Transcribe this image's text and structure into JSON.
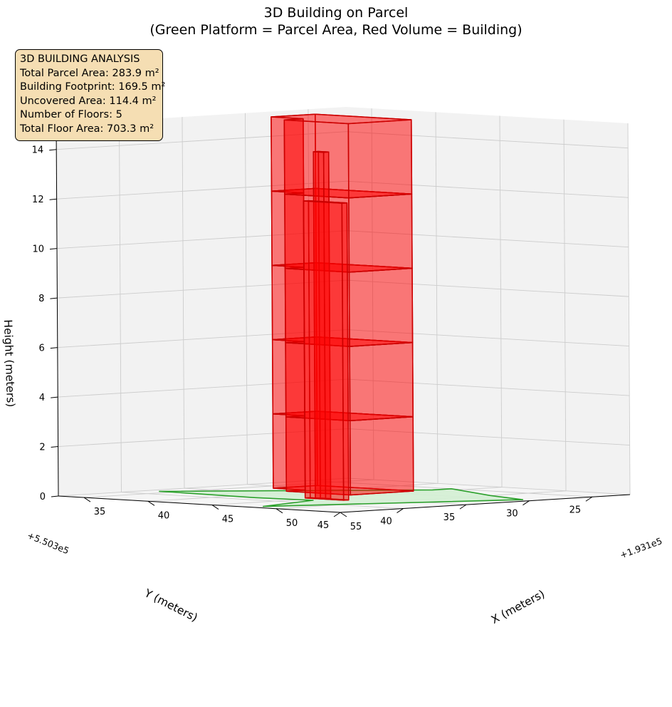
{
  "title": {
    "line1": "3D Building on Parcel",
    "line2": "(Green Platform = Parcel Area, Red Volume = Building)"
  },
  "info": {
    "heading": "3D BUILDING ANALYSIS",
    "parcel_area": "Total Parcel Area: 283.9 m²",
    "footprint": "Building Footprint: 169.5 m²",
    "uncovered": "Uncovered Area: 114.4 m²",
    "floors": "Number of Floors: 5",
    "floor_area": "Total Floor Area: 703.3 m²"
  },
  "colors": {
    "parcel_fill": "#d4f0d4",
    "parcel_edge": "#2ca02c",
    "building_fill": "#ff0000",
    "building_edge": "#cc0000",
    "pane": "#f2f2f2",
    "grid": "#cccccc",
    "info_bg": "#f5deb3"
  },
  "chart_data": {
    "type": "3d-polygons",
    "title": "3D Building on Parcel\n(Green Platform = Parcel Area, Red Volume = Building)",
    "xlabel": "X (meters)",
    "ylabel": "Y (meters)",
    "zlabel": "Height (meters)",
    "x_offset_label": "+1.931e5",
    "y_offset_label": "+5.503e5",
    "xlim": [
      33,
      55
    ],
    "ylim": [
      22,
      45
    ],
    "zlim": [
      0,
      15
    ],
    "x_ticks": [
      35,
      40,
      45,
      50,
      55
    ],
    "y_ticks": [
      25,
      30,
      35,
      40,
      45
    ],
    "z_ticks": [
      0,
      2,
      4,
      6,
      8,
      10,
      12,
      14
    ],
    "view": {
      "elev": 25,
      "azim": 45
    },
    "parcel": {
      "height": 0,
      "polygon": [
        [
          34,
          38
        ],
        [
          44,
          26.5
        ],
        [
          44,
          25
        ],
        [
          50,
          28
        ],
        [
          54,
          29.5
        ],
        [
          48,
          44
        ],
        [
          46,
          38
        ],
        [
          42,
          38.5
        ],
        [
          35,
          38
        ]
      ]
    },
    "building": {
      "floors": 5,
      "floor_height": 3,
      "footprint": [
        [
          36.5,
          28
        ],
        [
          44,
          28
        ],
        [
          44,
          33
        ],
        [
          39,
          33
        ],
        [
          39,
          31.5
        ],
        [
          36.5,
          31.5
        ]
      ],
      "stair_core": [
        [
          44.2,
          36.4
        ],
        [
          47.2,
          36.4
        ],
        [
          47.2,
          36.8
        ],
        [
          44.2,
          36.8
        ]
      ],
      "stair_core_height": 12,
      "spike": [
        [
          44.8,
          36.2
        ],
        [
          45.6,
          36.2
        ],
        [
          45.6,
          36.6
        ],
        [
          44.8,
          36.6
        ]
      ],
      "spike_height": 14
    }
  }
}
